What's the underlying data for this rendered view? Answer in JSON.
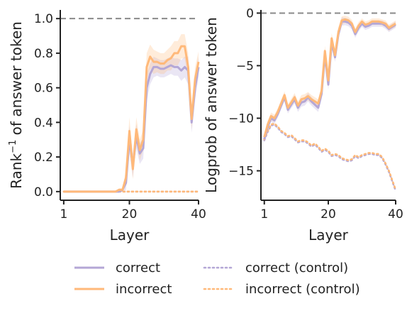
{
  "chart_data": [
    {
      "type": "line",
      "xlabel": "Layer",
      "ylabel_base": "Rank",
      "ylabel_sup": "−1",
      "ylabel_rest": " of answer token",
      "xlim": [
        0,
        40
      ],
      "ylim": [
        -0.05,
        1.05
      ],
      "xticks": [
        1,
        20,
        40
      ],
      "yticks": [
        0.0,
        0.2,
        0.4,
        0.6,
        0.8,
        1.0
      ],
      "ytick_labels": [
        "0.0",
        "0.2",
        "0.4",
        "0.6",
        "0.8",
        "1.0"
      ],
      "reference_line": 1.0,
      "x": [
        1,
        2,
        3,
        4,
        5,
        6,
        7,
        8,
        9,
        10,
        11,
        12,
        13,
        14,
        15,
        16,
        17,
        18,
        19,
        20,
        21,
        22,
        23,
        24,
        25,
        26,
        27,
        28,
        29,
        30,
        31,
        32,
        33,
        34,
        35,
        36,
        37,
        38,
        39,
        40
      ],
      "series": [
        {
          "name": "correct",
          "color": "#b4a7d6",
          "style": "solid",
          "values": [
            0,
            0,
            0,
            0,
            0,
            0,
            0,
            0,
            0,
            0,
            0,
            0,
            0,
            0,
            0,
            0,
            0,
            0.01,
            0.05,
            0.3,
            0.15,
            0.32,
            0.22,
            0.25,
            0.6,
            0.68,
            0.72,
            0.72,
            0.71,
            0.71,
            0.72,
            0.73,
            0.72,
            0.72,
            0.7,
            0.72,
            0.7,
            0.4,
            0.6,
            0.72
          ],
          "band": [
            0,
            0,
            0,
            0,
            0,
            0,
            0,
            0,
            0,
            0,
            0,
            0,
            0,
            0,
            0,
            0,
            0,
            0.01,
            0.04,
            0.08,
            0.07,
            0.07,
            0.06,
            0.06,
            0.08,
            0.06,
            0.06,
            0.05,
            0.05,
            0.05,
            0.05,
            0.05,
            0.05,
            0.05,
            0.06,
            0.06,
            0.08,
            0.06,
            0.07,
            0.06
          ]
        },
        {
          "name": "incorrect",
          "color": "#ffb97a",
          "style": "solid",
          "values": [
            0,
            0,
            0,
            0,
            0,
            0,
            0,
            0,
            0,
            0,
            0,
            0,
            0,
            0,
            0,
            0,
            0.01,
            0.01,
            0.08,
            0.35,
            0.13,
            0.36,
            0.24,
            0.3,
            0.72,
            0.78,
            0.75,
            0.75,
            0.74,
            0.74,
            0.76,
            0.77,
            0.8,
            0.8,
            0.84,
            0.84,
            0.72,
            0.42,
            0.65,
            0.75
          ],
          "band": [
            0,
            0,
            0,
            0,
            0,
            0,
            0,
            0,
            0,
            0,
            0,
            0,
            0,
            0,
            0,
            0,
            0.01,
            0.01,
            0.04,
            0.08,
            0.06,
            0.07,
            0.06,
            0.06,
            0.08,
            0.07,
            0.07,
            0.06,
            0.06,
            0.06,
            0.06,
            0.07,
            0.07,
            0.07,
            0.07,
            0.07,
            0.08,
            0.06,
            0.07,
            0.06
          ]
        },
        {
          "name": "correct (control)",
          "color": "#b4a7d6",
          "style": "dotted",
          "values": [
            0,
            0,
            0,
            0,
            0,
            0,
            0,
            0,
            0,
            0,
            0,
            0,
            0,
            0,
            0,
            0,
            0,
            0,
            0,
            0,
            0,
            0,
            0,
            0,
            0,
            0,
            0,
            0,
            0,
            0,
            0,
            0,
            0,
            0,
            0,
            0,
            0,
            0,
            0,
            0
          ]
        },
        {
          "name": "incorrect (control)",
          "color": "#ffb97a",
          "style": "dotted",
          "values": [
            0,
            0,
            0,
            0,
            0,
            0,
            0,
            0,
            0,
            0,
            0,
            0,
            0,
            0,
            0,
            0,
            0,
            0,
            0,
            0,
            0,
            0,
            0,
            0,
            0,
            0,
            0,
            0,
            0,
            0,
            0,
            0,
            0,
            0,
            0,
            0,
            0,
            0,
            0,
            0
          ]
        }
      ]
    },
    {
      "type": "line",
      "xlabel": "Layer",
      "ylabel": "Logprob of answer token",
      "xlim": [
        0,
        40
      ],
      "ylim": [
        -17.8,
        0.3
      ],
      "xticks": [
        1,
        20,
        40
      ],
      "yticks": [
        0,
        -5,
        -10,
        -15
      ],
      "ytick_labels": [
        "0",
        "−5",
        "−10",
        "−15"
      ],
      "reference_line": 0,
      "x": [
        1,
        2,
        3,
        4,
        5,
        6,
        7,
        8,
        9,
        10,
        11,
        12,
        13,
        14,
        15,
        16,
        17,
        18,
        19,
        20,
        21,
        22,
        23,
        24,
        25,
        26,
        27,
        28,
        29,
        30,
        31,
        32,
        33,
        34,
        35,
        36,
        37,
        38,
        39,
        40
      ],
      "series": [
        {
          "name": "correct",
          "color": "#b4a7d6",
          "style": "solid",
          "values": [
            -12.0,
            -10.8,
            -10.0,
            -10.2,
            -9.6,
            -8.8,
            -8.0,
            -9.2,
            -8.7,
            -8.2,
            -9.0,
            -8.5,
            -8.4,
            -8.0,
            -8.4,
            -8.7,
            -9.0,
            -7.7,
            -4.0,
            -6.8,
            -2.8,
            -4.2,
            -2.0,
            -0.8,
            -0.8,
            -0.9,
            -1.2,
            -2.0,
            -1.4,
            -1.0,
            -1.3,
            -1.2,
            -1.0,
            -1.0,
            -1.0,
            -1.0,
            -1.2,
            -1.5,
            -1.3,
            -1.1
          ],
          "band": [
            0.35,
            0.35,
            0.35,
            0.35,
            0.35,
            0.35,
            0.35,
            0.35,
            0.35,
            0.4,
            0.4,
            0.4,
            0.4,
            0.4,
            0.4,
            0.4,
            0.4,
            0.45,
            0.5,
            0.5,
            0.5,
            0.45,
            0.45,
            0.4,
            0.35,
            0.35,
            0.35,
            0.35,
            0.35,
            0.3,
            0.3,
            0.3,
            0.3,
            0.3,
            0.3,
            0.3,
            0.3,
            0.3,
            0.3,
            0.3
          ]
        },
        {
          "name": "incorrect",
          "color": "#ffb97a",
          "style": "solid",
          "values": [
            -11.8,
            -10.6,
            -9.8,
            -10.0,
            -9.4,
            -8.6,
            -7.8,
            -9.0,
            -8.5,
            -8.0,
            -8.8,
            -8.2,
            -8.1,
            -7.9,
            -8.2,
            -8.4,
            -8.6,
            -7.4,
            -3.6,
            -6.4,
            -2.4,
            -4.0,
            -1.8,
            -0.7,
            -0.6,
            -0.7,
            -1.0,
            -1.8,
            -1.2,
            -0.8,
            -1.1,
            -1.0,
            -0.8,
            -0.8,
            -0.8,
            -0.9,
            -1.0,
            -1.4,
            -1.2,
            -1.0
          ],
          "band": [
            0.35,
            0.35,
            0.35,
            0.35,
            0.35,
            0.35,
            0.35,
            0.35,
            0.35,
            0.4,
            0.4,
            0.4,
            0.4,
            0.4,
            0.4,
            0.4,
            0.4,
            0.45,
            0.5,
            0.5,
            0.5,
            0.45,
            0.45,
            0.4,
            0.35,
            0.35,
            0.35,
            0.35,
            0.35,
            0.3,
            0.3,
            0.3,
            0.3,
            0.3,
            0.3,
            0.3,
            0.3,
            0.3,
            0.3,
            0.3
          ]
        },
        {
          "name": "correct (control)",
          "color": "#b4a7d6",
          "style": "dotted",
          "values": [
            -12.1,
            -11.3,
            -10.7,
            -10.6,
            -10.9,
            -11.3,
            -11.5,
            -11.8,
            -11.7,
            -12.0,
            -12.3,
            -12.2,
            -12.2,
            -12.4,
            -12.7,
            -12.5,
            -12.8,
            -13.2,
            -13.0,
            -13.2,
            -13.6,
            -13.5,
            -13.6,
            -13.9,
            -14.0,
            -14.1,
            -14.0,
            -13.6,
            -13.8,
            -13.6,
            -13.5,
            -13.4,
            -13.4,
            -13.5,
            -13.5,
            -13.8,
            -14.4,
            -15.1,
            -16.0,
            -16.9
          ]
        },
        {
          "name": "incorrect (control)",
          "color": "#ffb97a",
          "style": "dotted",
          "values": [
            -12.0,
            -11.2,
            -10.6,
            -10.5,
            -10.8,
            -11.2,
            -11.4,
            -11.7,
            -11.6,
            -11.9,
            -12.2,
            -12.1,
            -12.1,
            -12.3,
            -12.6,
            -12.4,
            -12.7,
            -13.1,
            -12.9,
            -13.1,
            -13.5,
            -13.4,
            -13.5,
            -13.8,
            -13.9,
            -14.0,
            -13.9,
            -13.5,
            -13.7,
            -13.5,
            -13.4,
            -13.3,
            -13.3,
            -13.4,
            -13.4,
            -13.7,
            -14.3,
            -15.0,
            -15.9,
            -16.8
          ]
        }
      ]
    }
  ],
  "legend": {
    "placement": "bottom",
    "items": [
      {
        "label": "correct",
        "color": "#b4a7d6",
        "style": "solid"
      },
      {
        "label": "incorrect",
        "color": "#ffb97a",
        "style": "solid"
      },
      {
        "label": "correct (control)",
        "color": "#b4a7d6",
        "style": "dotted"
      },
      {
        "label": "incorrect (control)",
        "color": "#ffb97a",
        "style": "dotted"
      }
    ]
  }
}
